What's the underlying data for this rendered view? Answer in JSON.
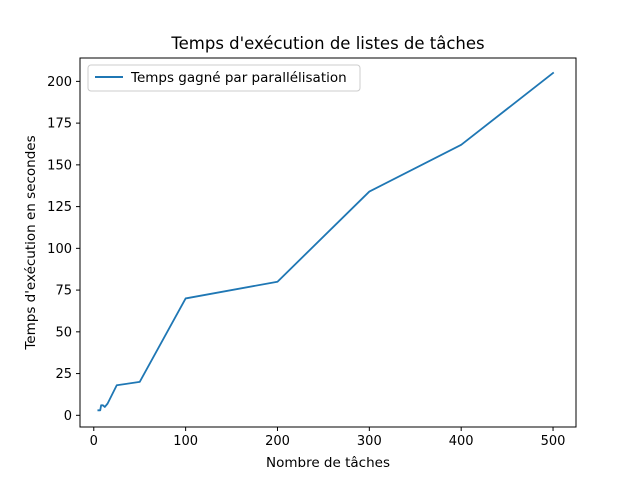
{
  "chart_data": {
    "type": "line",
    "title": "Temps d'exécution de listes de tâches",
    "xlabel": "Nombre de tâches",
    "ylabel": "Temps d'exécution en secondes",
    "xlim": [
      -15,
      525
    ],
    "ylim": [
      -7,
      214
    ],
    "xticks": [
      0,
      100,
      200,
      300,
      400,
      500
    ],
    "yticks": [
      0,
      25,
      50,
      75,
      100,
      125,
      150,
      175,
      200
    ],
    "grid": false,
    "legend_position": "top-left",
    "series": [
      {
        "name": "Temps gagné par parallélisation",
        "color": "#1f77b4",
        "x": [
          5,
          7,
          8,
          10,
          12,
          15,
          25,
          50,
          100,
          200,
          300,
          400,
          500
        ],
        "y": [
          3,
          3,
          6,
          6,
          5,
          7,
          18,
          20,
          70,
          80,
          134,
          162,
          205
        ]
      }
    ]
  }
}
